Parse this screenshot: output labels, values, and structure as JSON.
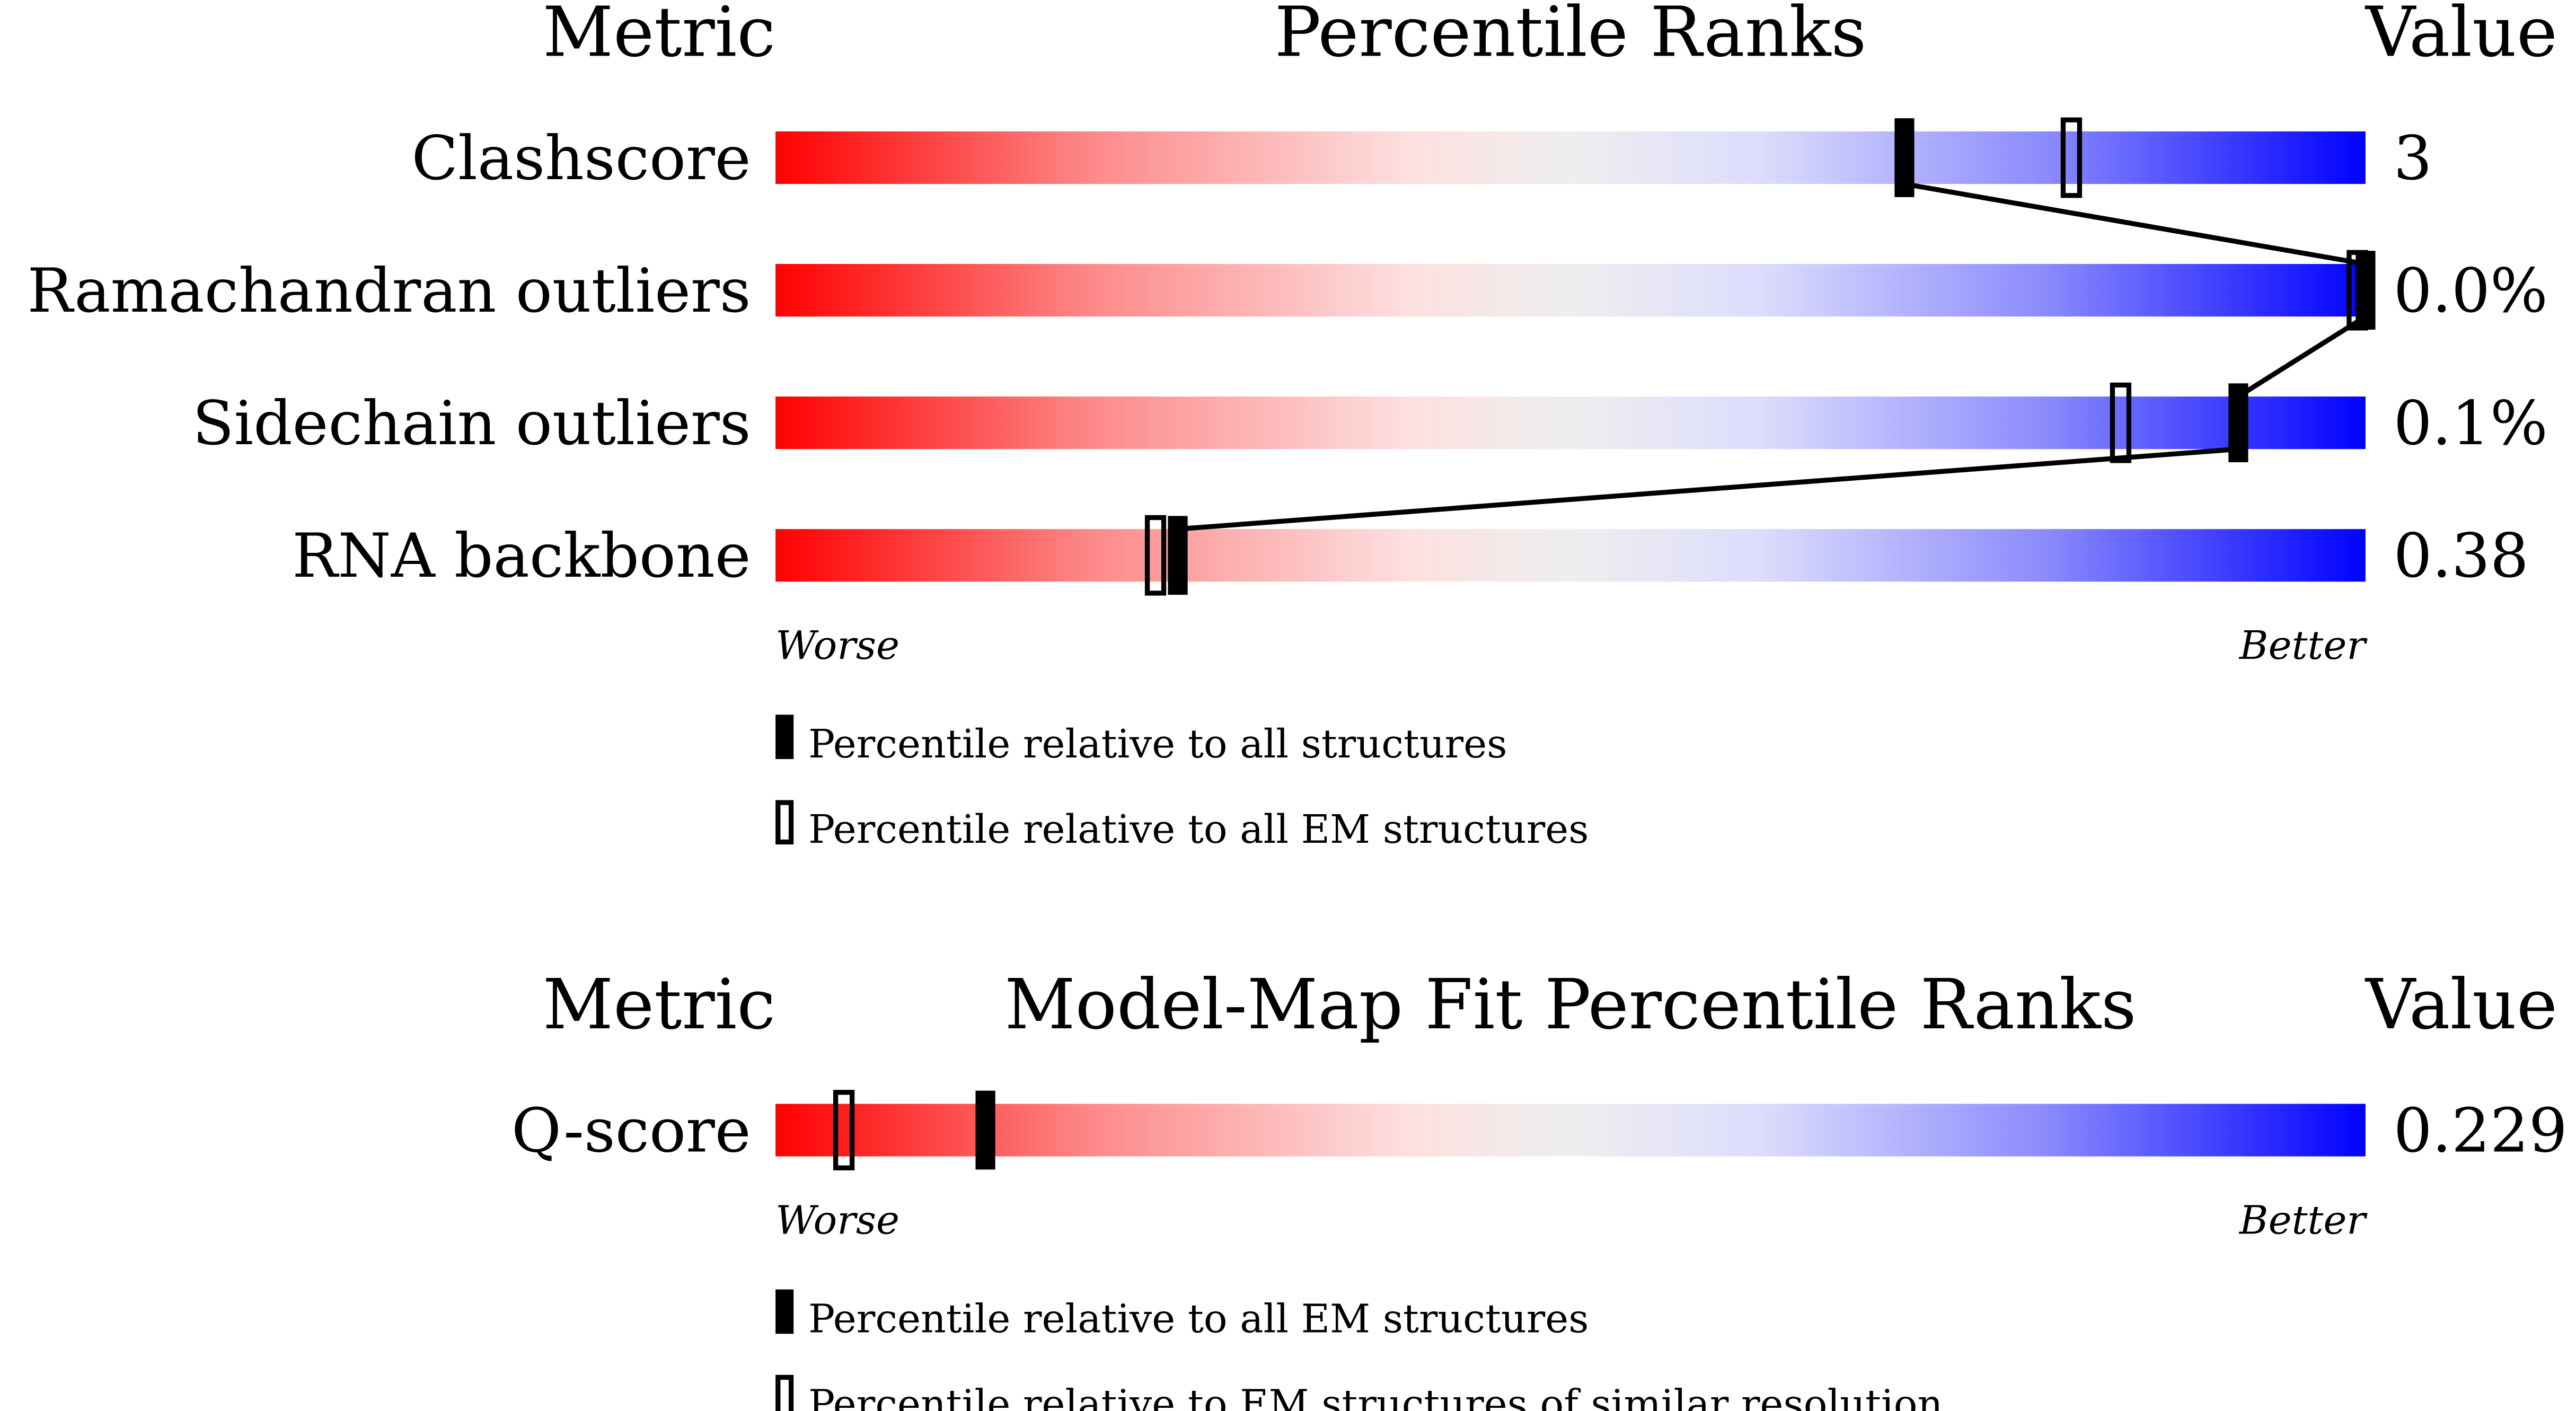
{
  "chart_data": [
    {
      "type": "percentile-bar",
      "headers": {
        "metric": "Metric",
        "title": "Percentile Ranks",
        "value": "Value"
      },
      "axis": {
        "left": "Worse",
        "right": "Better",
        "range": [
          0,
          100
        ]
      },
      "colors": {
        "worse": "#ff0000",
        "middle": "#eeeeee",
        "better": "#0000ff"
      },
      "rows": [
        {
          "metric": "Clashscore",
          "value": "3",
          "percentile_all": 71,
          "percentile_secondary": 81.5
        },
        {
          "metric": "Ramachandran outliers",
          "value": "0.0%",
          "percentile_all": 100,
          "percentile_secondary": 100
        },
        {
          "metric": "Sidechain outliers",
          "value": "0.1%",
          "percentile_all": 92,
          "percentile_secondary": 84.6
        },
        {
          "metric": "RNA backbone",
          "value": "0.38",
          "percentile_all": 25.3,
          "percentile_secondary": 23.9
        }
      ],
      "legend": [
        {
          "marker": "filled",
          "label": "Percentile relative to all structures"
        },
        {
          "marker": "open",
          "label": "Percentile relative to all EM structures"
        }
      ],
      "connect_filled_markers": true
    },
    {
      "type": "percentile-bar",
      "headers": {
        "metric": "Metric",
        "title": "Model-Map Fit Percentile Ranks",
        "value": "Value"
      },
      "axis": {
        "left": "Worse",
        "right": "Better",
        "range": [
          0,
          100
        ]
      },
      "colors": {
        "worse": "#ff0000",
        "middle": "#eeeeee",
        "better": "#0000ff"
      },
      "rows": [
        {
          "metric": "Q-score",
          "value": "0.229",
          "percentile_all": 13.2,
          "percentile_secondary": 4.3
        }
      ],
      "legend": [
        {
          "marker": "filled",
          "label": "Percentile relative to all EM structures"
        },
        {
          "marker": "open",
          "label": "Percentile relative to EM structures of similar resolution"
        }
      ],
      "connect_filled_markers": false
    }
  ]
}
